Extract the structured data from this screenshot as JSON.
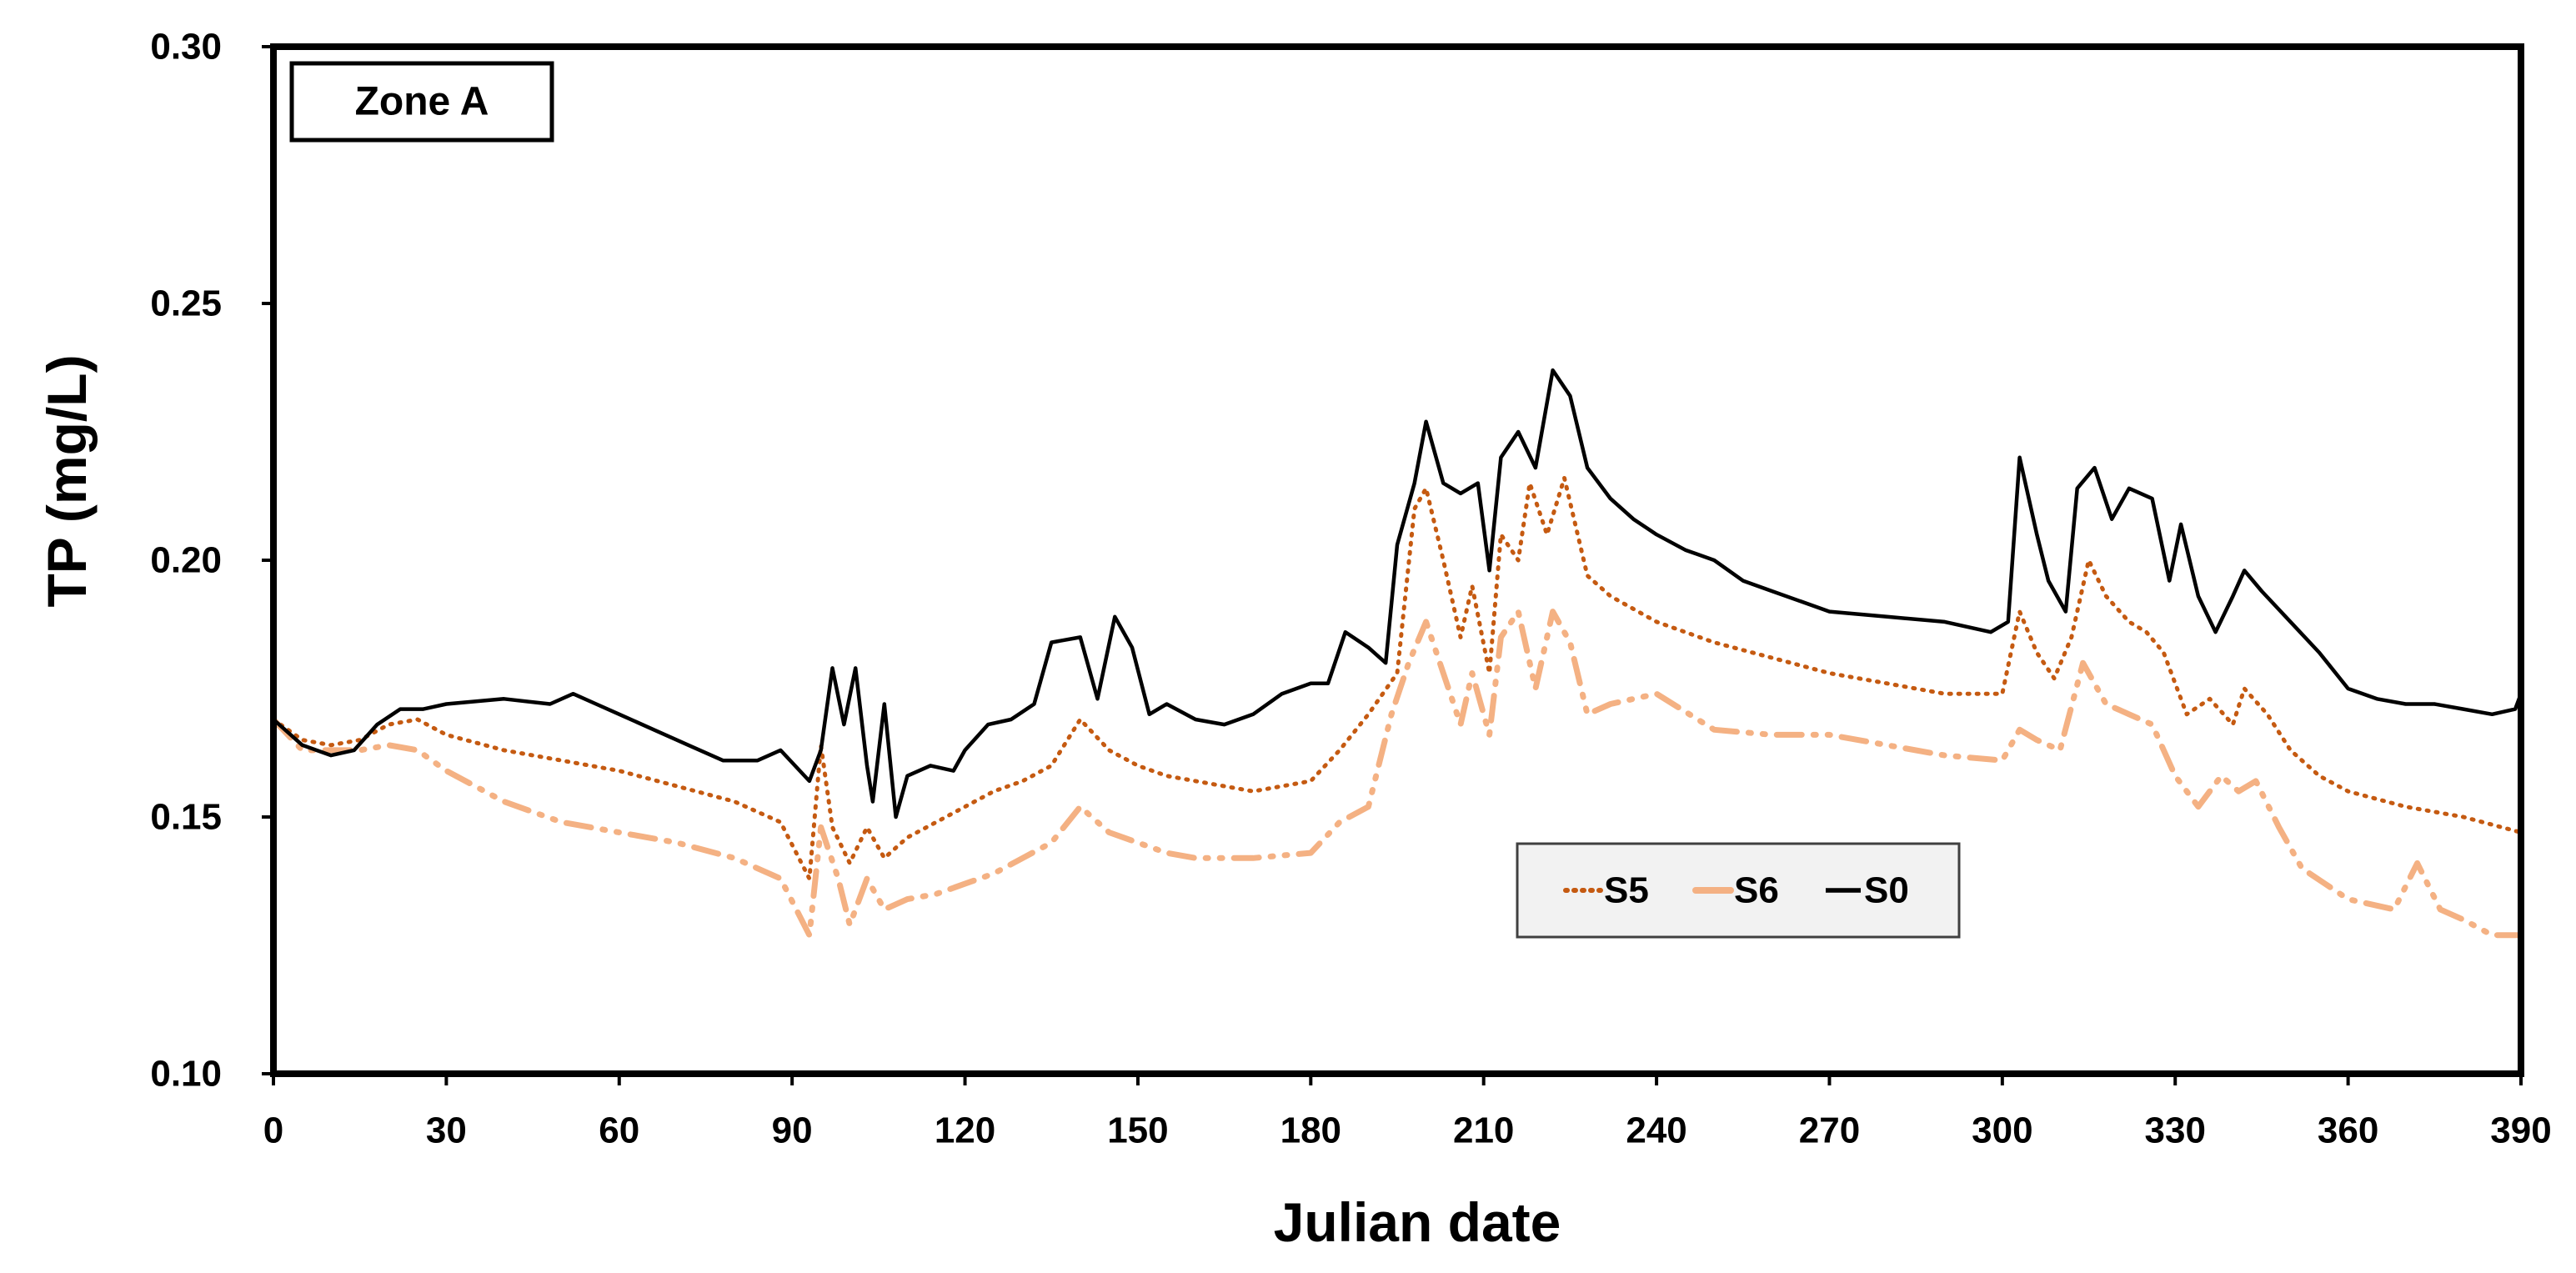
{
  "chart_data": {
    "type": "line",
    "annotation": "Zone A",
    "xlabel": "Julian date",
    "ylabel": "TP (mg/L)",
    "xlim": [
      0,
      390
    ],
    "ylim": [
      0.1,
      0.3
    ],
    "xticks": [
      0,
      30,
      60,
      90,
      120,
      150,
      180,
      210,
      240,
      270,
      300,
      330,
      360,
      390
    ],
    "yticks": [
      "0.10",
      "0.15",
      "0.20",
      "0.25",
      "0.30"
    ],
    "grid": false,
    "legend_position": "lower-center-right",
    "series": [
      {
        "name": "S5",
        "color": "#c55a11",
        "style": "dotted",
        "points": [
          [
            0,
            0.169
          ],
          [
            5,
            0.165
          ],
          [
            10,
            0.164
          ],
          [
            15,
            0.165
          ],
          [
            20,
            0.168
          ],
          [
            25,
            0.169
          ],
          [
            30,
            0.166
          ],
          [
            40,
            0.163
          ],
          [
            50,
            0.161
          ],
          [
            60,
            0.159
          ],
          [
            70,
            0.156
          ],
          [
            80,
            0.153
          ],
          [
            88,
            0.149
          ],
          [
            93,
            0.138
          ],
          [
            95,
            0.164
          ],
          [
            97,
            0.148
          ],
          [
            100,
            0.141
          ],
          [
            103,
            0.148
          ],
          [
            106,
            0.142
          ],
          [
            110,
            0.146
          ],
          [
            115,
            0.149
          ],
          [
            120,
            0.152
          ],
          [
            125,
            0.155
          ],
          [
            130,
            0.157
          ],
          [
            135,
            0.16
          ],
          [
            140,
            0.169
          ],
          [
            145,
            0.163
          ],
          [
            150,
            0.16
          ],
          [
            155,
            0.158
          ],
          [
            160,
            0.157
          ],
          [
            170,
            0.155
          ],
          [
            180,
            0.157
          ],
          [
            185,
            0.163
          ],
          [
            190,
            0.17
          ],
          [
            195,
            0.178
          ],
          [
            198,
            0.21
          ],
          [
            200,
            0.214
          ],
          [
            203,
            0.2
          ],
          [
            206,
            0.185
          ],
          [
            208,
            0.195
          ],
          [
            211,
            0.178
          ],
          [
            213,
            0.205
          ],
          [
            216,
            0.2
          ],
          [
            218,
            0.215
          ],
          [
            221,
            0.205
          ],
          [
            224,
            0.216
          ],
          [
            228,
            0.197
          ],
          [
            232,
            0.193
          ],
          [
            240,
            0.188
          ],
          [
            250,
            0.184
          ],
          [
            260,
            0.181
          ],
          [
            270,
            0.178
          ],
          [
            280,
            0.176
          ],
          [
            290,
            0.174
          ],
          [
            300,
            0.174
          ],
          [
            303,
            0.19
          ],
          [
            306,
            0.182
          ],
          [
            309,
            0.177
          ],
          [
            312,
            0.185
          ],
          [
            315,
            0.2
          ],
          [
            318,
            0.193
          ],
          [
            322,
            0.188
          ],
          [
            325,
            0.186
          ],
          [
            328,
            0.182
          ],
          [
            332,
            0.17
          ],
          [
            336,
            0.173
          ],
          [
            340,
            0.168
          ],
          [
            342,
            0.175
          ],
          [
            346,
            0.17
          ],
          [
            350,
            0.163
          ],
          [
            355,
            0.158
          ],
          [
            360,
            0.155
          ],
          [
            370,
            0.152
          ],
          [
            380,
            0.15
          ],
          [
            390,
            0.147
          ]
        ]
      },
      {
        "name": "S6",
        "color": "#f4b183",
        "style": "dash-dot",
        "points": [
          [
            0,
            0.169
          ],
          [
            5,
            0.163
          ],
          [
            10,
            0.163
          ],
          [
            15,
            0.163
          ],
          [
            20,
            0.164
          ],
          [
            25,
            0.163
          ],
          [
            30,
            0.159
          ],
          [
            40,
            0.153
          ],
          [
            50,
            0.149
          ],
          [
            60,
            0.147
          ],
          [
            70,
            0.145
          ],
          [
            80,
            0.142
          ],
          [
            88,
            0.138
          ],
          [
            93,
            0.127
          ],
          [
            95,
            0.148
          ],
          [
            98,
            0.138
          ],
          [
            100,
            0.129
          ],
          [
            103,
            0.138
          ],
          [
            106,
            0.132
          ],
          [
            110,
            0.134
          ],
          [
            115,
            0.135
          ],
          [
            120,
            0.137
          ],
          [
            125,
            0.139
          ],
          [
            130,
            0.142
          ],
          [
            135,
            0.145
          ],
          [
            140,
            0.152
          ],
          [
            145,
            0.147
          ],
          [
            150,
            0.145
          ],
          [
            155,
            0.143
          ],
          [
            160,
            0.142
          ],
          [
            170,
            0.142
          ],
          [
            180,
            0.143
          ],
          [
            185,
            0.149
          ],
          [
            190,
            0.152
          ],
          [
            194,
            0.17
          ],
          [
            197,
            0.18
          ],
          [
            200,
            0.188
          ],
          [
            203,
            0.178
          ],
          [
            206,
            0.168
          ],
          [
            208,
            0.178
          ],
          [
            211,
            0.166
          ],
          [
            213,
            0.185
          ],
          [
            216,
            0.19
          ],
          [
            219,
            0.175
          ],
          [
            222,
            0.19
          ],
          [
            225,
            0.184
          ],
          [
            228,
            0.17
          ],
          [
            232,
            0.172
          ],
          [
            240,
            0.174
          ],
          [
            250,
            0.167
          ],
          [
            260,
            0.166
          ],
          [
            270,
            0.166
          ],
          [
            280,
            0.164
          ],
          [
            290,
            0.162
          ],
          [
            300,
            0.161
          ],
          [
            303,
            0.167
          ],
          [
            306,
            0.165
          ],
          [
            310,
            0.163
          ],
          [
            314,
            0.18
          ],
          [
            318,
            0.172
          ],
          [
            322,
            0.17
          ],
          [
            326,
            0.168
          ],
          [
            330,
            0.158
          ],
          [
            334,
            0.152
          ],
          [
            338,
            0.158
          ],
          [
            341,
            0.155
          ],
          [
            344,
            0.157
          ],
          [
            348,
            0.148
          ],
          [
            352,
            0.14
          ],
          [
            356,
            0.137
          ],
          [
            360,
            0.134
          ],
          [
            368,
            0.132
          ],
          [
            372,
            0.141
          ],
          [
            376,
            0.132
          ],
          [
            380,
            0.13
          ],
          [
            385,
            0.127
          ],
          [
            390,
            0.127
          ]
        ]
      },
      {
        "name": "S0",
        "color": "#000000",
        "style": "solid",
        "points": [
          [
            0,
            0.169
          ],
          [
            5,
            0.164
          ],
          [
            10,
            0.162
          ],
          [
            14,
            0.163
          ],
          [
            18,
            0.168
          ],
          [
            22,
            0.171
          ],
          [
            26,
            0.171
          ],
          [
            30,
            0.172
          ],
          [
            40,
            0.173
          ],
          [
            48,
            0.172
          ],
          [
            52,
            0.174
          ],
          [
            56,
            0.172
          ],
          [
            60,
            0.17
          ],
          [
            66,
            0.167
          ],
          [
            72,
            0.164
          ],
          [
            78,
            0.161
          ],
          [
            84,
            0.161
          ],
          [
            88,
            0.163
          ],
          [
            93,
            0.157
          ],
          [
            95,
            0.163
          ],
          [
            97,
            0.179
          ],
          [
            99,
            0.168
          ],
          [
            101,
            0.179
          ],
          [
            103,
            0.16
          ],
          [
            104,
            0.153
          ],
          [
            106,
            0.172
          ],
          [
            108,
            0.15
          ],
          [
            110,
            0.158
          ],
          [
            114,
            0.16
          ],
          [
            118,
            0.159
          ],
          [
            120,
            0.163
          ],
          [
            124,
            0.168
          ],
          [
            128,
            0.169
          ],
          [
            132,
            0.172
          ],
          [
            135,
            0.184
          ],
          [
            140,
            0.185
          ],
          [
            143,
            0.173
          ],
          [
            146,
            0.189
          ],
          [
            149,
            0.183
          ],
          [
            152,
            0.17
          ],
          [
            155,
            0.172
          ],
          [
            160,
            0.169
          ],
          [
            165,
            0.168
          ],
          [
            170,
            0.17
          ],
          [
            175,
            0.174
          ],
          [
            180,
            0.176
          ],
          [
            183,
            0.176
          ],
          [
            186,
            0.186
          ],
          [
            190,
            0.183
          ],
          [
            193,
            0.18
          ],
          [
            195,
            0.203
          ],
          [
            198,
            0.215
          ],
          [
            200,
            0.227
          ],
          [
            203,
            0.215
          ],
          [
            206,
            0.213
          ],
          [
            209,
            0.215
          ],
          [
            211,
            0.198
          ],
          [
            213,
            0.22
          ],
          [
            216,
            0.225
          ],
          [
            219,
            0.218
          ],
          [
            222,
            0.237
          ],
          [
            225,
            0.232
          ],
          [
            228,
            0.218
          ],
          [
            232,
            0.212
          ],
          [
            236,
            0.208
          ],
          [
            240,
            0.205
          ],
          [
            245,
            0.202
          ],
          [
            250,
            0.2
          ],
          [
            255,
            0.196
          ],
          [
            260,
            0.194
          ],
          [
            265,
            0.192
          ],
          [
            270,
            0.19
          ],
          [
            280,
            0.189
          ],
          [
            290,
            0.188
          ],
          [
            298,
            0.186
          ],
          [
            301,
            0.188
          ],
          [
            303,
            0.22
          ],
          [
            306,
            0.205
          ],
          [
            308,
            0.196
          ],
          [
            311,
            0.19
          ],
          [
            313,
            0.214
          ],
          [
            316,
            0.218
          ],
          [
            319,
            0.208
          ],
          [
            322,
            0.214
          ],
          [
            326,
            0.212
          ],
          [
            329,
            0.196
          ],
          [
            331,
            0.207
          ],
          [
            334,
            0.193
          ],
          [
            337,
            0.186
          ],
          [
            340,
            0.193
          ],
          [
            342,
            0.198
          ],
          [
            345,
            0.194
          ],
          [
            350,
            0.188
          ],
          [
            355,
            0.182
          ],
          [
            360,
            0.175
          ],
          [
            365,
            0.173
          ],
          [
            370,
            0.172
          ],
          [
            375,
            0.172
          ],
          [
            380,
            0.171
          ],
          [
            385,
            0.17
          ],
          [
            389,
            0.171
          ],
          [
            390,
            0.174
          ]
        ]
      }
    ]
  }
}
